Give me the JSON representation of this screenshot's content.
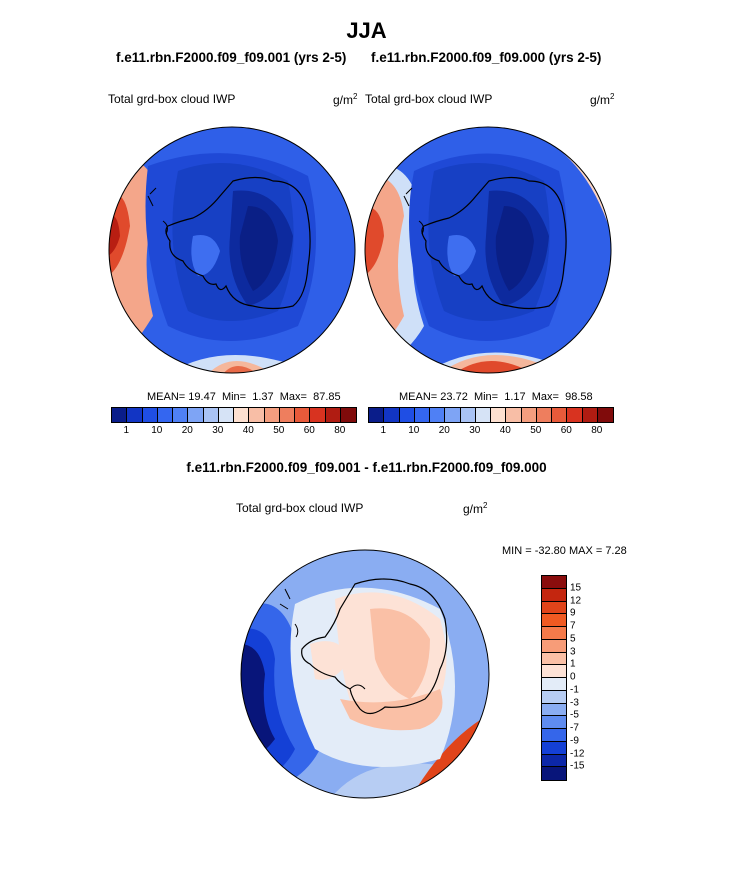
{
  "figure": {
    "title": "JJA",
    "left_case": "f.e11.rbn.F2000.f09_f09.001 (yrs 2-5)",
    "right_case": "f.e11.rbn.F2000.f09_f09.000 (yrs 2-5)",
    "diff_title": "f.e11.rbn.F2000.f09_f09.001 - f.e11.rbn.F2000.f09_f09.000"
  },
  "panels": {
    "left": {
      "variable": "Total grd-box cloud IWP",
      "units": "g/m",
      "units_exp": "2",
      "stats": {
        "mean_label": "MEAN=",
        "mean": "19.47",
        "min_label": "Min=",
        "min": "1.37",
        "max_label": "Max=",
        "max": "87.85"
      }
    },
    "right": {
      "variable": "Total grd-box cloud IWP",
      "units": "g/m",
      "units_exp": "2",
      "stats": {
        "mean_label": "MEAN=",
        "mean": "23.72",
        "min_label": "Min=",
        "min": "1.17",
        "max_label": "Max=",
        "max": "98.58"
      }
    },
    "diff": {
      "variable": "Total grd-box cloud IWP",
      "units": "g/m",
      "units_exp": "2",
      "minmax_text": "MIN = -32.80 MAX =   7.28"
    }
  },
  "colorbar_abs": {
    "labels": [
      "1",
      "10",
      "20",
      "30",
      "40",
      "50",
      "60",
      "80"
    ],
    "colors": [
      "#0a1d8a",
      "#1235c4",
      "#1f4ee4",
      "#3466f0",
      "#4f80f5",
      "#7ea4f5",
      "#a9c3f5",
      "#d6e3f6",
      "#fde0d0",
      "#f8bea6",
      "#f49e7f",
      "#ee7e5e",
      "#e85a3a",
      "#d83320",
      "#b01c12",
      "#800b0b"
    ]
  },
  "colorbar_diff": {
    "labels": [
      "15",
      "12",
      "9",
      "7",
      "5",
      "3",
      "1",
      "0",
      "-1",
      "-3",
      "-5",
      "-7",
      "-9",
      "-12",
      "-15"
    ],
    "colors": [
      "#8a0d0d",
      "#c4260f",
      "#e0441a",
      "#f05a22",
      "#f57a4a",
      "#f79c78",
      "#fac0a6",
      "#fde2d6",
      "#e3ecf8",
      "#b7cdf3",
      "#8aadf2",
      "#5f8cf0",
      "#3566ea",
      "#1440d6",
      "#0c27a8",
      "#08157a"
    ]
  }
}
